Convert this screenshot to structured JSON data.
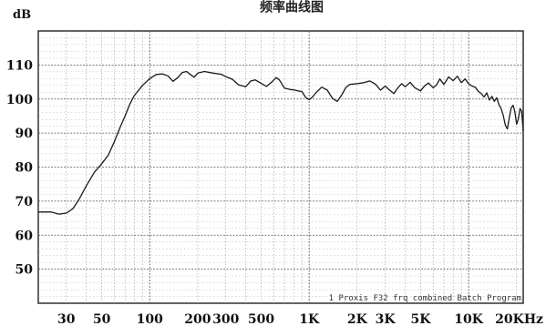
{
  "chart_data": {
    "type": "line",
    "title": "频率曲线图",
    "ylabel": "dB",
    "xlabel": "",
    "x_scale": "log",
    "xlim": [
      20,
      22000
    ],
    "ylim": [
      40,
      120
    ],
    "grid": true,
    "yticks": [
      110,
      100,
      90,
      80,
      70,
      60,
      50
    ],
    "xticks": [
      {
        "value": 30,
        "label": "30"
      },
      {
        "value": 50,
        "label": "50"
      },
      {
        "value": 100,
        "label": "100"
      },
      {
        "value": 200,
        "label": "200"
      },
      {
        "value": 300,
        "label": "300"
      },
      {
        "value": 500,
        "label": "500"
      },
      {
        "value": 1000,
        "label": "1K"
      },
      {
        "value": 2000,
        "label": "2K"
      },
      {
        "value": 3000,
        "label": "3K"
      },
      {
        "value": 5000,
        "label": "5K"
      },
      {
        "value": 10000,
        "label": "10K"
      },
      {
        "value": 20000,
        "label": "20KHz"
      }
    ],
    "annotation": "1 Proxis F32 frq combined Batch Program",
    "series": [
      {
        "values": [
          [
            20,
            66.8
          ],
          [
            24,
            66.8
          ],
          [
            27,
            66.2
          ],
          [
            30,
            66.5
          ],
          [
            33,
            67.8
          ],
          [
            36,
            70.5
          ],
          [
            40,
            74.5
          ],
          [
            45,
            78.5
          ],
          [
            50,
            81
          ],
          [
            55,
            83.5
          ],
          [
            60,
            87.5
          ],
          [
            65,
            91.5
          ],
          [
            70,
            95
          ],
          [
            75,
            98.5
          ],
          [
            80,
            101
          ],
          [
            90,
            104
          ],
          [
            100,
            106
          ],
          [
            110,
            107.2
          ],
          [
            120,
            107.4
          ],
          [
            130,
            106.8
          ],
          [
            140,
            105.2
          ],
          [
            150,
            106.3
          ],
          [
            160,
            107.8
          ],
          [
            170,
            108.1
          ],
          [
            180,
            107.2
          ],
          [
            190,
            106.4
          ],
          [
            200,
            107.6
          ],
          [
            220,
            108.1
          ],
          [
            250,
            107.6
          ],
          [
            280,
            107.3
          ],
          [
            300,
            106.6
          ],
          [
            330,
            105.8
          ],
          [
            360,
            104.2
          ],
          [
            400,
            103.6
          ],
          [
            430,
            105.3
          ],
          [
            460,
            105.6
          ],
          [
            500,
            104.6
          ],
          [
            540,
            103.7
          ],
          [
            580,
            104.9
          ],
          [
            620,
            106.3
          ],
          [
            650,
            105.6
          ],
          [
            700,
            103.2
          ],
          [
            760,
            102.8
          ],
          [
            800,
            102.7
          ],
          [
            850,
            102.4
          ],
          [
            900,
            102.2
          ],
          [
            950,
            100.5
          ],
          [
            1000,
            99.8
          ],
          [
            1050,
            100.6
          ],
          [
            1100,
            101.8
          ],
          [
            1200,
            103.5
          ],
          [
            1300,
            102.6
          ],
          [
            1400,
            100.2
          ],
          [
            1500,
            99.3
          ],
          [
            1600,
            101.2
          ],
          [
            1700,
            103.4
          ],
          [
            1800,
            104.3
          ],
          [
            2000,
            104.5
          ],
          [
            2200,
            104.8
          ],
          [
            2400,
            105.3
          ],
          [
            2600,
            104.4
          ],
          [
            2800,
            102.6
          ],
          [
            3000,
            103.8
          ],
          [
            3200,
            102.6
          ],
          [
            3400,
            101.6
          ],
          [
            3600,
            103.3
          ],
          [
            3800,
            104.5
          ],
          [
            4000,
            103.6
          ],
          [
            4300,
            104.9
          ],
          [
            4600,
            103.3
          ],
          [
            5000,
            102.4
          ],
          [
            5300,
            103.9
          ],
          [
            5600,
            104.7
          ],
          [
            6000,
            103.3
          ],
          [
            6300,
            104.2
          ],
          [
            6600,
            105.9
          ],
          [
            7000,
            104.3
          ],
          [
            7500,
            106.5
          ],
          [
            8000,
            105.4
          ],
          [
            8500,
            106.7
          ],
          [
            9000,
            104.8
          ],
          [
            9500,
            105.9
          ],
          [
            10000,
            104.5
          ],
          [
            10500,
            103.8
          ],
          [
            11000,
            103.5
          ],
          [
            11500,
            102.3
          ],
          [
            12000,
            101.6
          ],
          [
            12500,
            100.6
          ],
          [
            13000,
            101.8
          ],
          [
            13500,
            99.7
          ],
          [
            14000,
            100.8
          ],
          [
            14500,
            99.3
          ],
          [
            15000,
            100.4
          ],
          [
            15500,
            98.3
          ],
          [
            16000,
            97.2
          ],
          [
            16500,
            95.2
          ],
          [
            17000,
            92.3
          ],
          [
            17500,
            91.2
          ],
          [
            18000,
            94.6
          ],
          [
            18500,
            97.4
          ],
          [
            19000,
            98.2
          ],
          [
            19500,
            96.3
          ],
          [
            20000,
            92.6
          ],
          [
            20500,
            94.1
          ],
          [
            21000,
            97.2
          ],
          [
            21500,
            96.4
          ],
          [
            22000,
            90.6
          ]
        ]
      }
    ]
  }
}
